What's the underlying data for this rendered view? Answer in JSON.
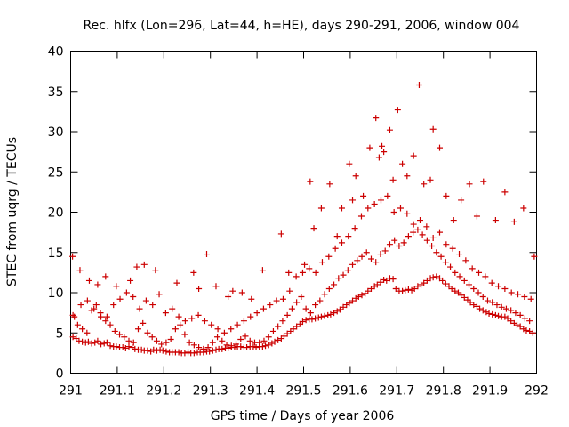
{
  "chart_data": {
    "type": "scatter",
    "title": "Rec. hlfx (Lon=296, Lat=44, h=HE), days 290-291, 2006, window 004",
    "xlabel": "GPS time / Days of year 2006",
    "ylabel": "STEC from uqrg / TECUs",
    "xlim": [
      291,
      292
    ],
    "ylim": [
      0,
      40
    ],
    "xticks": [
      "291",
      "291.1",
      "291.2",
      "291.3",
      "291.4",
      "291.5",
      "291.6",
      "291.7",
      "291.8",
      "291.9",
      "292"
    ],
    "yticks": [
      "0",
      "5",
      "10",
      "15",
      "20",
      "25",
      "30",
      "35",
      "40"
    ],
    "grid": false,
    "marker": "+",
    "color": "#cc0000",
    "series": [
      {
        "name": "STEC",
        "x": [
          291.005,
          291.012,
          291.018,
          291.025,
          291.032,
          291.038,
          291.045,
          291.052,
          291.058,
          291.065,
          291.072,
          291.078,
          291.085,
          291.092,
          291.098,
          291.105,
          291.112,
          291.118,
          291.125,
          291.132,
          291.138,
          291.145,
          291.152,
          291.158,
          291.165,
          291.172,
          291.178,
          291.185,
          291.192,
          291.198,
          291.205,
          291.212,
          291.218,
          291.225,
          291.232,
          291.238,
          291.245,
          291.252,
          291.258,
          291.265,
          291.272,
          291.278,
          291.285,
          291.292,
          291.298,
          291.305,
          291.312,
          291.318,
          291.325,
          291.332,
          291.338,
          291.345,
          291.352,
          291.358,
          291.365,
          291.372,
          291.378,
          291.385,
          291.392,
          291.398,
          291.405,
          291.412,
          291.418,
          291.425,
          291.432,
          291.438,
          291.445,
          291.452,
          291.458,
          291.465,
          291.472,
          291.478,
          291.485,
          291.492,
          291.498,
          291.505,
          291.512,
          291.518,
          291.525,
          291.532,
          291.538,
          291.545,
          291.552,
          291.558,
          291.565,
          291.572,
          291.578,
          291.585,
          291.592,
          291.598,
          291.605,
          291.612,
          291.618,
          291.625,
          291.632,
          291.638,
          291.645,
          291.652,
          291.658,
          291.665,
          291.672,
          291.678,
          291.685,
          291.692,
          291.698,
          291.705,
          291.712,
          291.718,
          291.725,
          291.732,
          291.738,
          291.745,
          291.752,
          291.758,
          291.765,
          291.772,
          291.778,
          291.785,
          291.792,
          291.798,
          291.805,
          291.812,
          291.818,
          291.825,
          291.832,
          291.838,
          291.845,
          291.852,
          291.858,
          291.865,
          291.872,
          291.878,
          291.885,
          291.892,
          291.898,
          291.905,
          291.912,
          291.918,
          291.925,
          291.932,
          291.938,
          291.945,
          291.952,
          291.958,
          291.965,
          291.972,
          291.978,
          291.985,
          291.992,
          291.005,
          291.015,
          291.025,
          291.035,
          291.045,
          291.055,
          291.065,
          291.075,
          291.085,
          291.095,
          291.105,
          291.115,
          291.125,
          291.135,
          291.145,
          291.155,
          291.165,
          291.175,
          291.185,
          291.195,
          291.205,
          291.215,
          291.225,
          291.235,
          291.245,
          291.255,
          291.265,
          291.275,
          291.285,
          291.295,
          291.305,
          291.315,
          291.325,
          291.335,
          291.345,
          291.355,
          291.365,
          291.375,
          291.385,
          291.395,
          291.405,
          291.415,
          291.425,
          291.435,
          291.445,
          291.455,
          291.465,
          291.475,
          291.485,
          291.495,
          291.505,
          291.515,
          291.525,
          291.535,
          291.545,
          291.555,
          291.565,
          291.575,
          291.585,
          291.595,
          291.605,
          291.615,
          291.625,
          291.635,
          291.645,
          291.655,
          291.665,
          291.675,
          291.685,
          291.695,
          291.705,
          291.715,
          291.725,
          291.735,
          291.745,
          291.755,
          291.765,
          291.775,
          291.785,
          291.795,
          291.805,
          291.815,
          291.825,
          291.835,
          291.845,
          291.855,
          291.865,
          291.875,
          291.885,
          291.895,
          291.905,
          291.915,
          291.925,
          291.935,
          291.945,
          291.955,
          291.965,
          291.975,
          291.985,
          291.008,
          291.022,
          291.036,
          291.05,
          291.064,
          291.078,
          291.092,
          291.106,
          291.12,
          291.134,
          291.148,
          291.162,
          291.176,
          291.19,
          291.204,
          291.218,
          291.232,
          291.246,
          291.26,
          291.274,
          291.288,
          291.302,
          291.316,
          291.33,
          291.344,
          291.358,
          291.372,
          291.386,
          291.4,
          291.414,
          291.428,
          291.442,
          291.456,
          291.47,
          291.484,
          291.498,
          291.512,
          291.526,
          291.54,
          291.554,
          291.568,
          291.582,
          291.596,
          291.61,
          291.624,
          291.638,
          291.652,
          291.666,
          291.68,
          291.694,
          291.708,
          291.722,
          291.736,
          291.75,
          291.764,
          291.778,
          291.792,
          291.806,
          291.82,
          291.834,
          291.848,
          291.862,
          291.876,
          291.89,
          291.904,
          291.918,
          291.932,
          291.946,
          291.96,
          291.974,
          291.988,
          291.004,
          291.02,
          291.04,
          291.058,
          291.075,
          291.098,
          291.128,
          291.142,
          291.158,
          291.182,
          291.228,
          291.264,
          291.275,
          291.292,
          291.312,
          291.338,
          291.348,
          291.368,
          291.388,
          291.412,
          291.452,
          291.468,
          291.502,
          291.514,
          291.522,
          291.538,
          291.556,
          291.572,
          291.582,
          291.598,
          291.605,
          291.612,
          291.628,
          291.642,
          291.655,
          291.662,
          291.668,
          291.672,
          291.685,
          291.692,
          291.702,
          291.712,
          291.722,
          291.736,
          291.748,
          291.758,
          291.772,
          291.778,
          291.792,
          291.806,
          291.822,
          291.838,
          291.856,
          291.872,
          291.886,
          291.912,
          291.932,
          291.952,
          291.972,
          291.995
        ],
        "y": [
          4.5,
          4.3,
          4.0,
          3.9,
          3.8,
          3.9,
          3.7,
          3.8,
          4.0,
          3.6,
          3.7,
          3.8,
          3.4,
          3.3,
          3.3,
          3.2,
          3.2,
          3.1,
          3.3,
          3.2,
          3.0,
          2.9,
          2.9,
          2.8,
          2.8,
          2.7,
          2.9,
          2.8,
          2.9,
          2.8,
          2.7,
          2.6,
          2.6,
          2.6,
          2.6,
          2.5,
          2.5,
          2.6,
          2.5,
          2.5,
          2.6,
          2.6,
          2.6,
          2.7,
          2.7,
          2.8,
          2.9,
          3.0,
          3.0,
          3.1,
          3.1,
          3.2,
          3.2,
          3.3,
          3.3,
          3.2,
          3.2,
          3.3,
          3.3,
          3.2,
          3.3,
          3.3,
          3.4,
          3.5,
          3.7,
          3.9,
          4.1,
          4.3,
          4.6,
          4.9,
          5.2,
          5.5,
          5.8,
          6.1,
          6.4,
          6.6,
          6.7,
          6.7,
          6.8,
          6.9,
          7.0,
          7.1,
          7.2,
          7.3,
          7.5,
          7.7,
          7.9,
          8.2,
          8.5,
          8.7,
          9.0,
          9.3,
          9.5,
          9.7,
          9.9,
          10.2,
          10.5,
          10.8,
          11.0,
          11.3,
          11.6,
          11.5,
          11.8,
          11.7,
          10.5,
          10.2,
          10.2,
          10.3,
          10.4,
          10.3,
          10.5,
          10.8,
          11.0,
          11.2,
          11.5,
          11.8,
          11.9,
          12.0,
          11.8,
          11.5,
          11.1,
          10.8,
          10.5,
          10.2,
          10.0,
          9.7,
          9.4,
          9.1,
          8.8,
          8.5,
          8.3,
          8.0,
          7.8,
          7.6,
          7.4,
          7.3,
          7.2,
          7.1,
          7.0,
          7.0,
          6.8,
          6.5,
          6.2,
          6.0,
          5.8,
          5.5,
          5.3,
          5.2,
          5.0,
          7.2,
          6.0,
          5.5,
          5.0,
          7.8,
          8.5,
          7.0,
          6.5,
          6.0,
          5.2,
          4.8,
          4.5,
          4.0,
          3.8,
          5.5,
          6.2,
          5.0,
          4.5,
          4.0,
          3.6,
          3.8,
          4.2,
          5.5,
          6.0,
          4.8,
          3.8,
          3.5,
          3.2,
          3.0,
          3.2,
          3.8,
          4.5,
          4.0,
          3.5,
          3.4,
          3.6,
          4.2,
          4.6,
          4.0,
          3.8,
          3.8,
          4.0,
          4.5,
          5.2,
          5.8,
          6.5,
          7.2,
          8.0,
          8.8,
          9.5,
          8.0,
          7.5,
          8.5,
          9.0,
          9.8,
          10.5,
          11.0,
          11.8,
          12.2,
          12.8,
          13.5,
          14.0,
          14.5,
          15.0,
          14.2,
          13.8,
          14.8,
          15.2,
          16.0,
          16.5,
          15.8,
          16.2,
          17.0,
          17.5,
          17.8,
          17.2,
          16.5,
          15.8,
          15.0,
          14.5,
          13.8,
          13.2,
          12.5,
          12.0,
          11.5,
          11.0,
          10.5,
          10.0,
          9.5,
          9.0,
          8.8,
          8.5,
          8.2,
          8.0,
          7.8,
          7.5,
          7.2,
          6.8,
          6.5,
          7.0,
          8.5,
          9.0,
          8.0,
          7.5,
          7.0,
          8.5,
          9.2,
          10.0,
          9.5,
          8.0,
          9.0,
          8.5,
          9.8,
          7.5,
          8.0,
          7.0,
          6.5,
          6.8,
          7.2,
          6.5,
          6.0,
          5.5,
          5.0,
          5.5,
          6.0,
          6.5,
          7.0,
          7.5,
          8.0,
          8.5,
          9.0,
          9.2,
          10.2,
          12.0,
          12.5,
          13.0,
          12.5,
          13.8,
          14.5,
          15.5,
          16.2,
          17.0,
          18.0,
          19.5,
          20.5,
          21.0,
          21.5,
          22.0,
          20.0,
          20.5,
          19.8,
          18.5,
          19.0,
          18.2,
          16.8,
          17.5,
          16.0,
          15.5,
          14.8,
          14.0,
          13.0,
          12.5,
          12.0,
          11.2,
          10.8,
          10.5,
          10.0,
          9.8,
          9.5,
          9.2,
          14.5,
          12.8,
          11.5,
          11.0,
          12.0,
          10.8,
          11.5,
          13.2,
          13.5,
          12.8,
          11.2,
          12.5,
          10.5,
          14.8,
          10.8,
          9.5,
          10.2,
          10.0,
          9.2,
          12.8,
          17.3,
          12.5,
          13.5,
          23.8,
          18.0,
          20.5,
          23.5,
          17.0,
          20.5,
          26.0,
          21.5,
          24.5,
          22.0,
          28.0,
          31.7,
          26.8,
          28.2,
          27.5,
          30.2,
          24.0,
          32.7,
          26.0,
          24.5,
          27.0,
          35.8,
          23.5,
          24.0,
          30.3,
          28.0,
          22.0,
          19.0,
          21.5,
          23.5,
          19.5,
          23.8,
          19.0,
          22.5,
          18.8,
          20.5,
          14.5
        ]
      }
    ]
  }
}
